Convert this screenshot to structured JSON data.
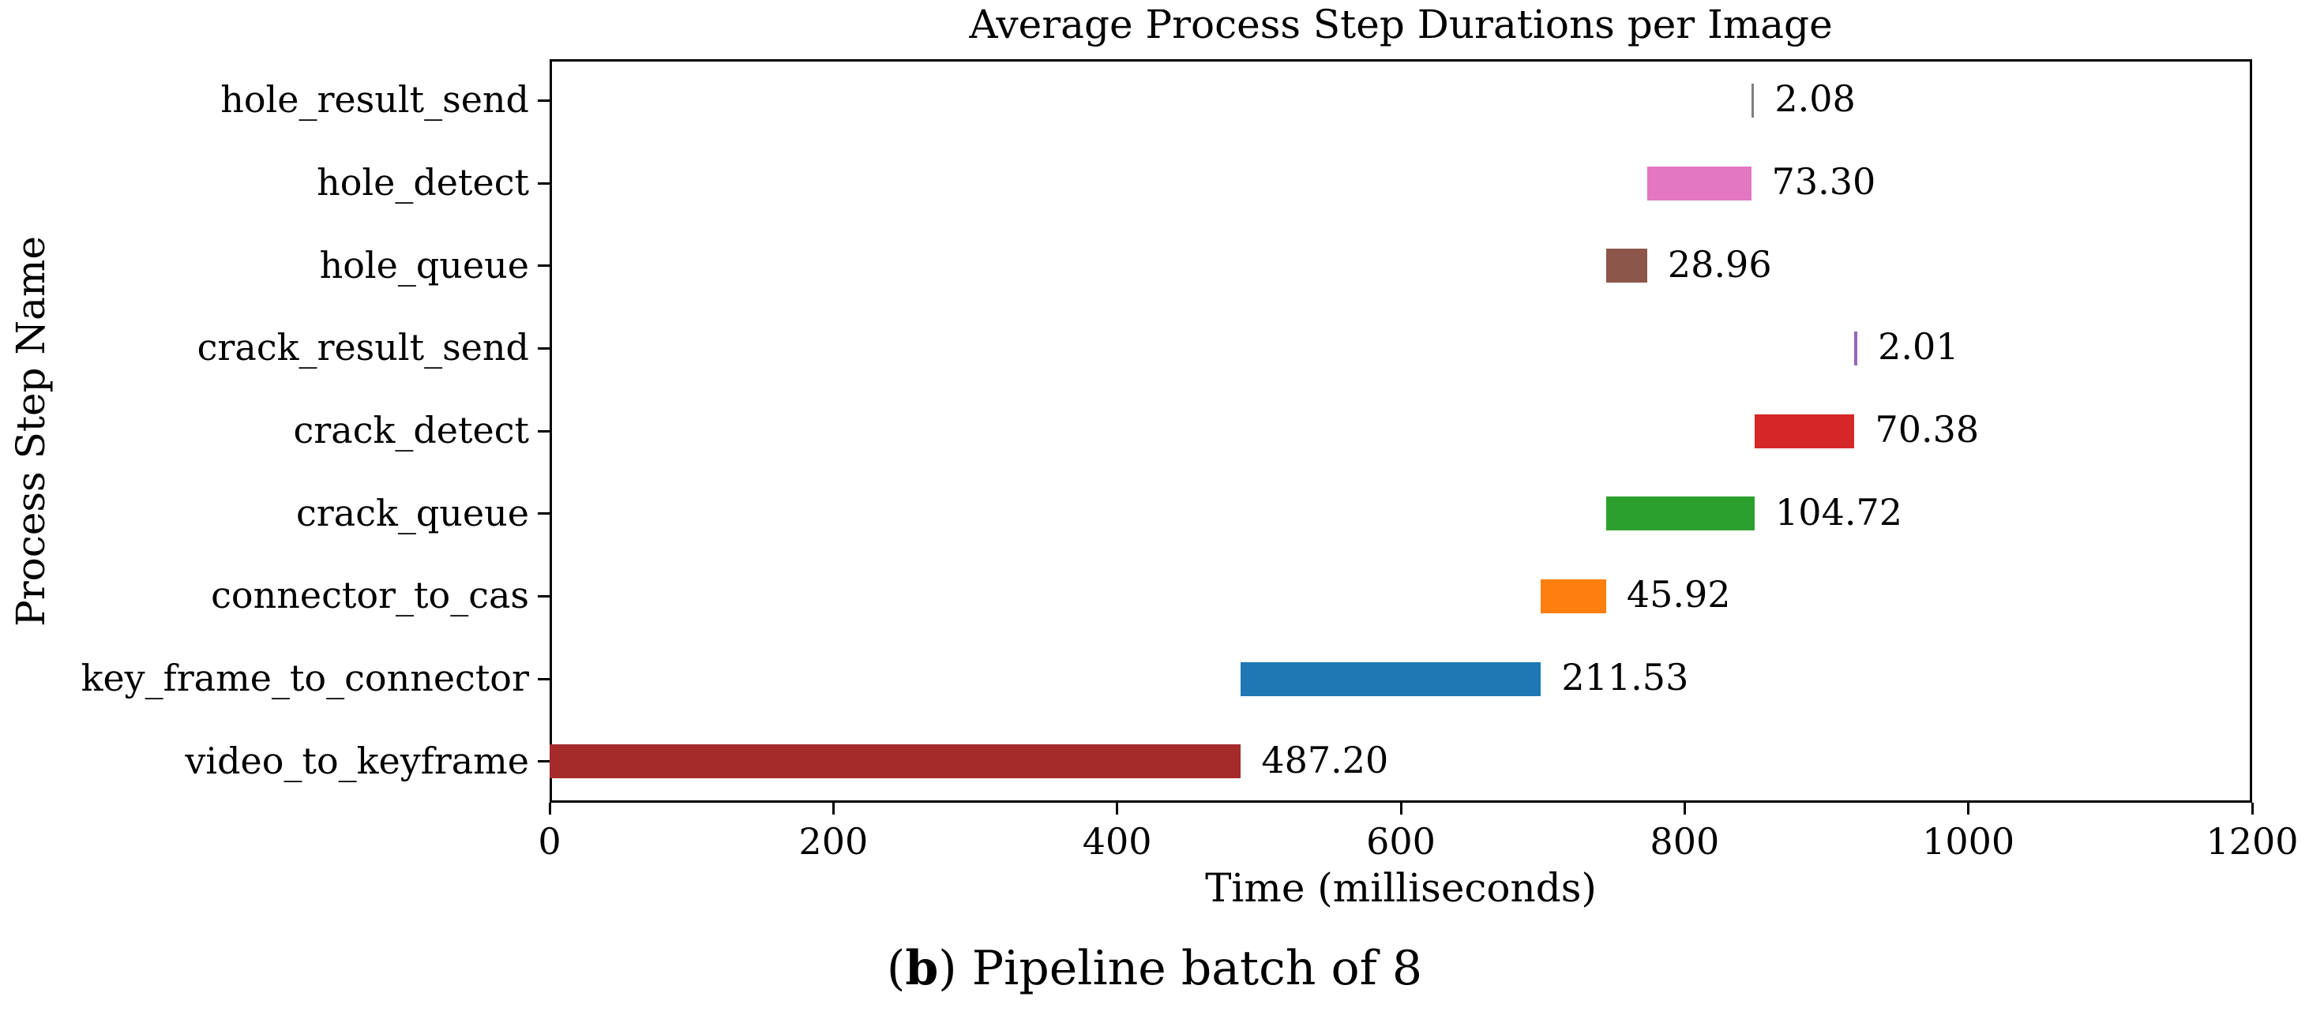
{
  "figure": {
    "title": "Average Process Step Durations per Image",
    "xlabel": "Time (milliseconds)",
    "ylabel": "Process Step Name",
    "caption": {
      "open_paren": "(",
      "index": "b",
      "close_paren": ")",
      "text": " Pipeline batch of 8"
    }
  },
  "chart_data": {
    "type": "bar",
    "orientation": "horizontal-gantt",
    "title": "Average Process Step Durations per Image",
    "xlabel": "Time (milliseconds)",
    "ylabel": "Process Step Name",
    "xlim": [
      0,
      1200
    ],
    "xticks": [
      0,
      200,
      400,
      600,
      800,
      1000,
      1200
    ],
    "grid": false,
    "legend": "none",
    "categories_top_to_bottom": [
      "hole_result_send",
      "hole_detect",
      "hole_queue",
      "crack_result_send",
      "crack_detect",
      "crack_queue",
      "connector_to_cas",
      "key_frame_to_connector",
      "video_to_keyframe"
    ],
    "bars": [
      {
        "label": "hole_result_send",
        "start": 846.91,
        "value": 2.08,
        "value_label": "2.08",
        "color": "#7f7f7f"
      },
      {
        "label": "hole_detect",
        "start": 773.61,
        "value": 73.3,
        "value_label": "73.30",
        "color": "#e377c2"
      },
      {
        "label": "hole_queue",
        "start": 744.65,
        "value": 28.96,
        "value_label": "28.96",
        "color": "#8c564b"
      },
      {
        "label": "crack_result_send",
        "start": 919.75,
        "value": 2.01,
        "value_label": "2.01",
        "color": "#9467bd"
      },
      {
        "label": "crack_detect",
        "start": 849.37,
        "value": 70.38,
        "value_label": "70.38",
        "color": "#d62728"
      },
      {
        "label": "crack_queue",
        "start": 744.65,
        "value": 104.72,
        "value_label": "104.72",
        "color": "#2ca02c"
      },
      {
        "label": "connector_to_cas",
        "start": 698.73,
        "value": 45.92,
        "value_label": "45.92",
        "color": "#ff7f0e"
      },
      {
        "label": "key_frame_to_connector",
        "start": 487.2,
        "value": 211.53,
        "value_label": "211.53",
        "color": "#1f77b4"
      },
      {
        "label": "video_to_keyframe",
        "start": 0,
        "value": 487.2,
        "value_label": "487.20",
        "color": "#a52a2a"
      }
    ]
  }
}
